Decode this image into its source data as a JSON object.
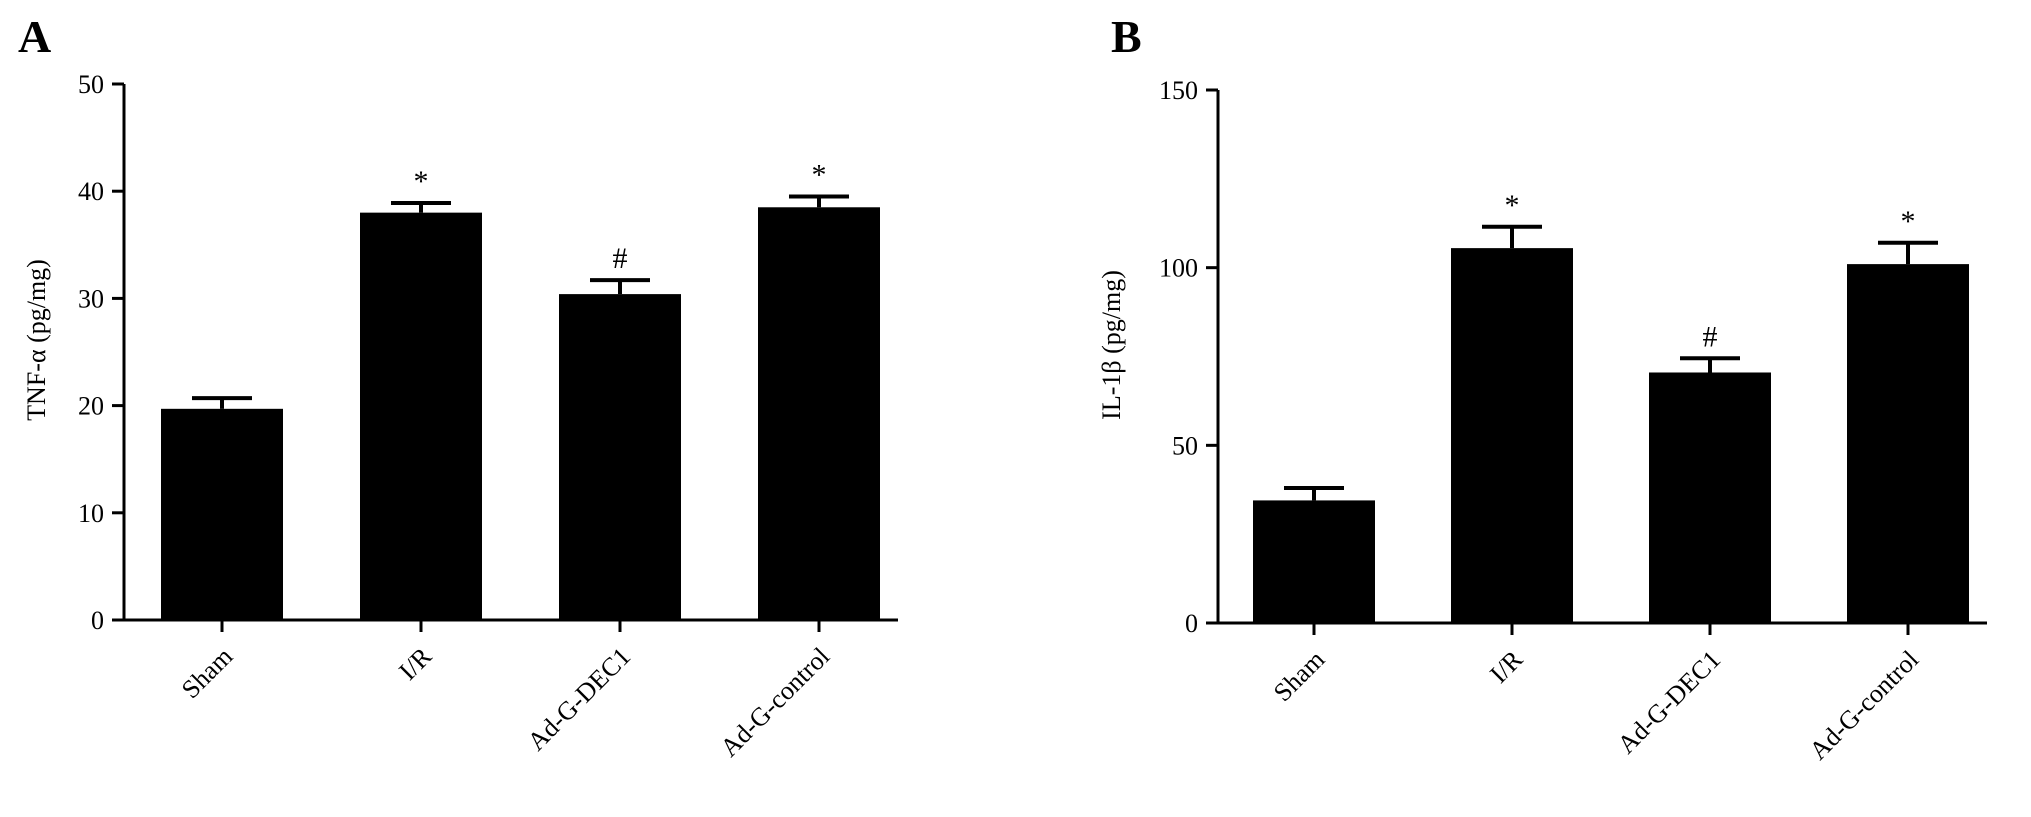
{
  "chart_data": [
    {
      "panel": "A",
      "type": "bar",
      "categories": [
        "Sham",
        "I/R",
        "Ad-G-DEC1",
        "Ad-G-control"
      ],
      "values": [
        19.7,
        38.0,
        30.4,
        38.5
      ],
      "errors": [
        1.0,
        0.9,
        1.3,
        1.0
      ],
      "annotations": [
        "",
        "*",
        "#",
        "*"
      ],
      "ylabel": "TNF-α (pg/mg)",
      "ylim": [
        0,
        50
      ],
      "yticks": [
        "0",
        "10",
        "20",
        "30",
        "40",
        "50"
      ],
      "bar_color": "#000000",
      "grid": false
    },
    {
      "panel": "B",
      "type": "bar",
      "categories": [
        "Sham",
        "I/R",
        "Ad-G-DEC1",
        "Ad-G-control"
      ],
      "values": [
        34.5,
        105.5,
        70.5,
        101.0
      ],
      "errors": [
        3.5,
        6.0,
        4.0,
        6.0
      ],
      "annotations": [
        "",
        "*",
        "#",
        "*"
      ],
      "ylabel": "IL-1β (pg/mg)",
      "ylim": [
        0,
        150
      ],
      "yticks": [
        "0",
        "50",
        "100",
        "150"
      ],
      "bar_color": "#000000",
      "grid": false
    }
  ]
}
